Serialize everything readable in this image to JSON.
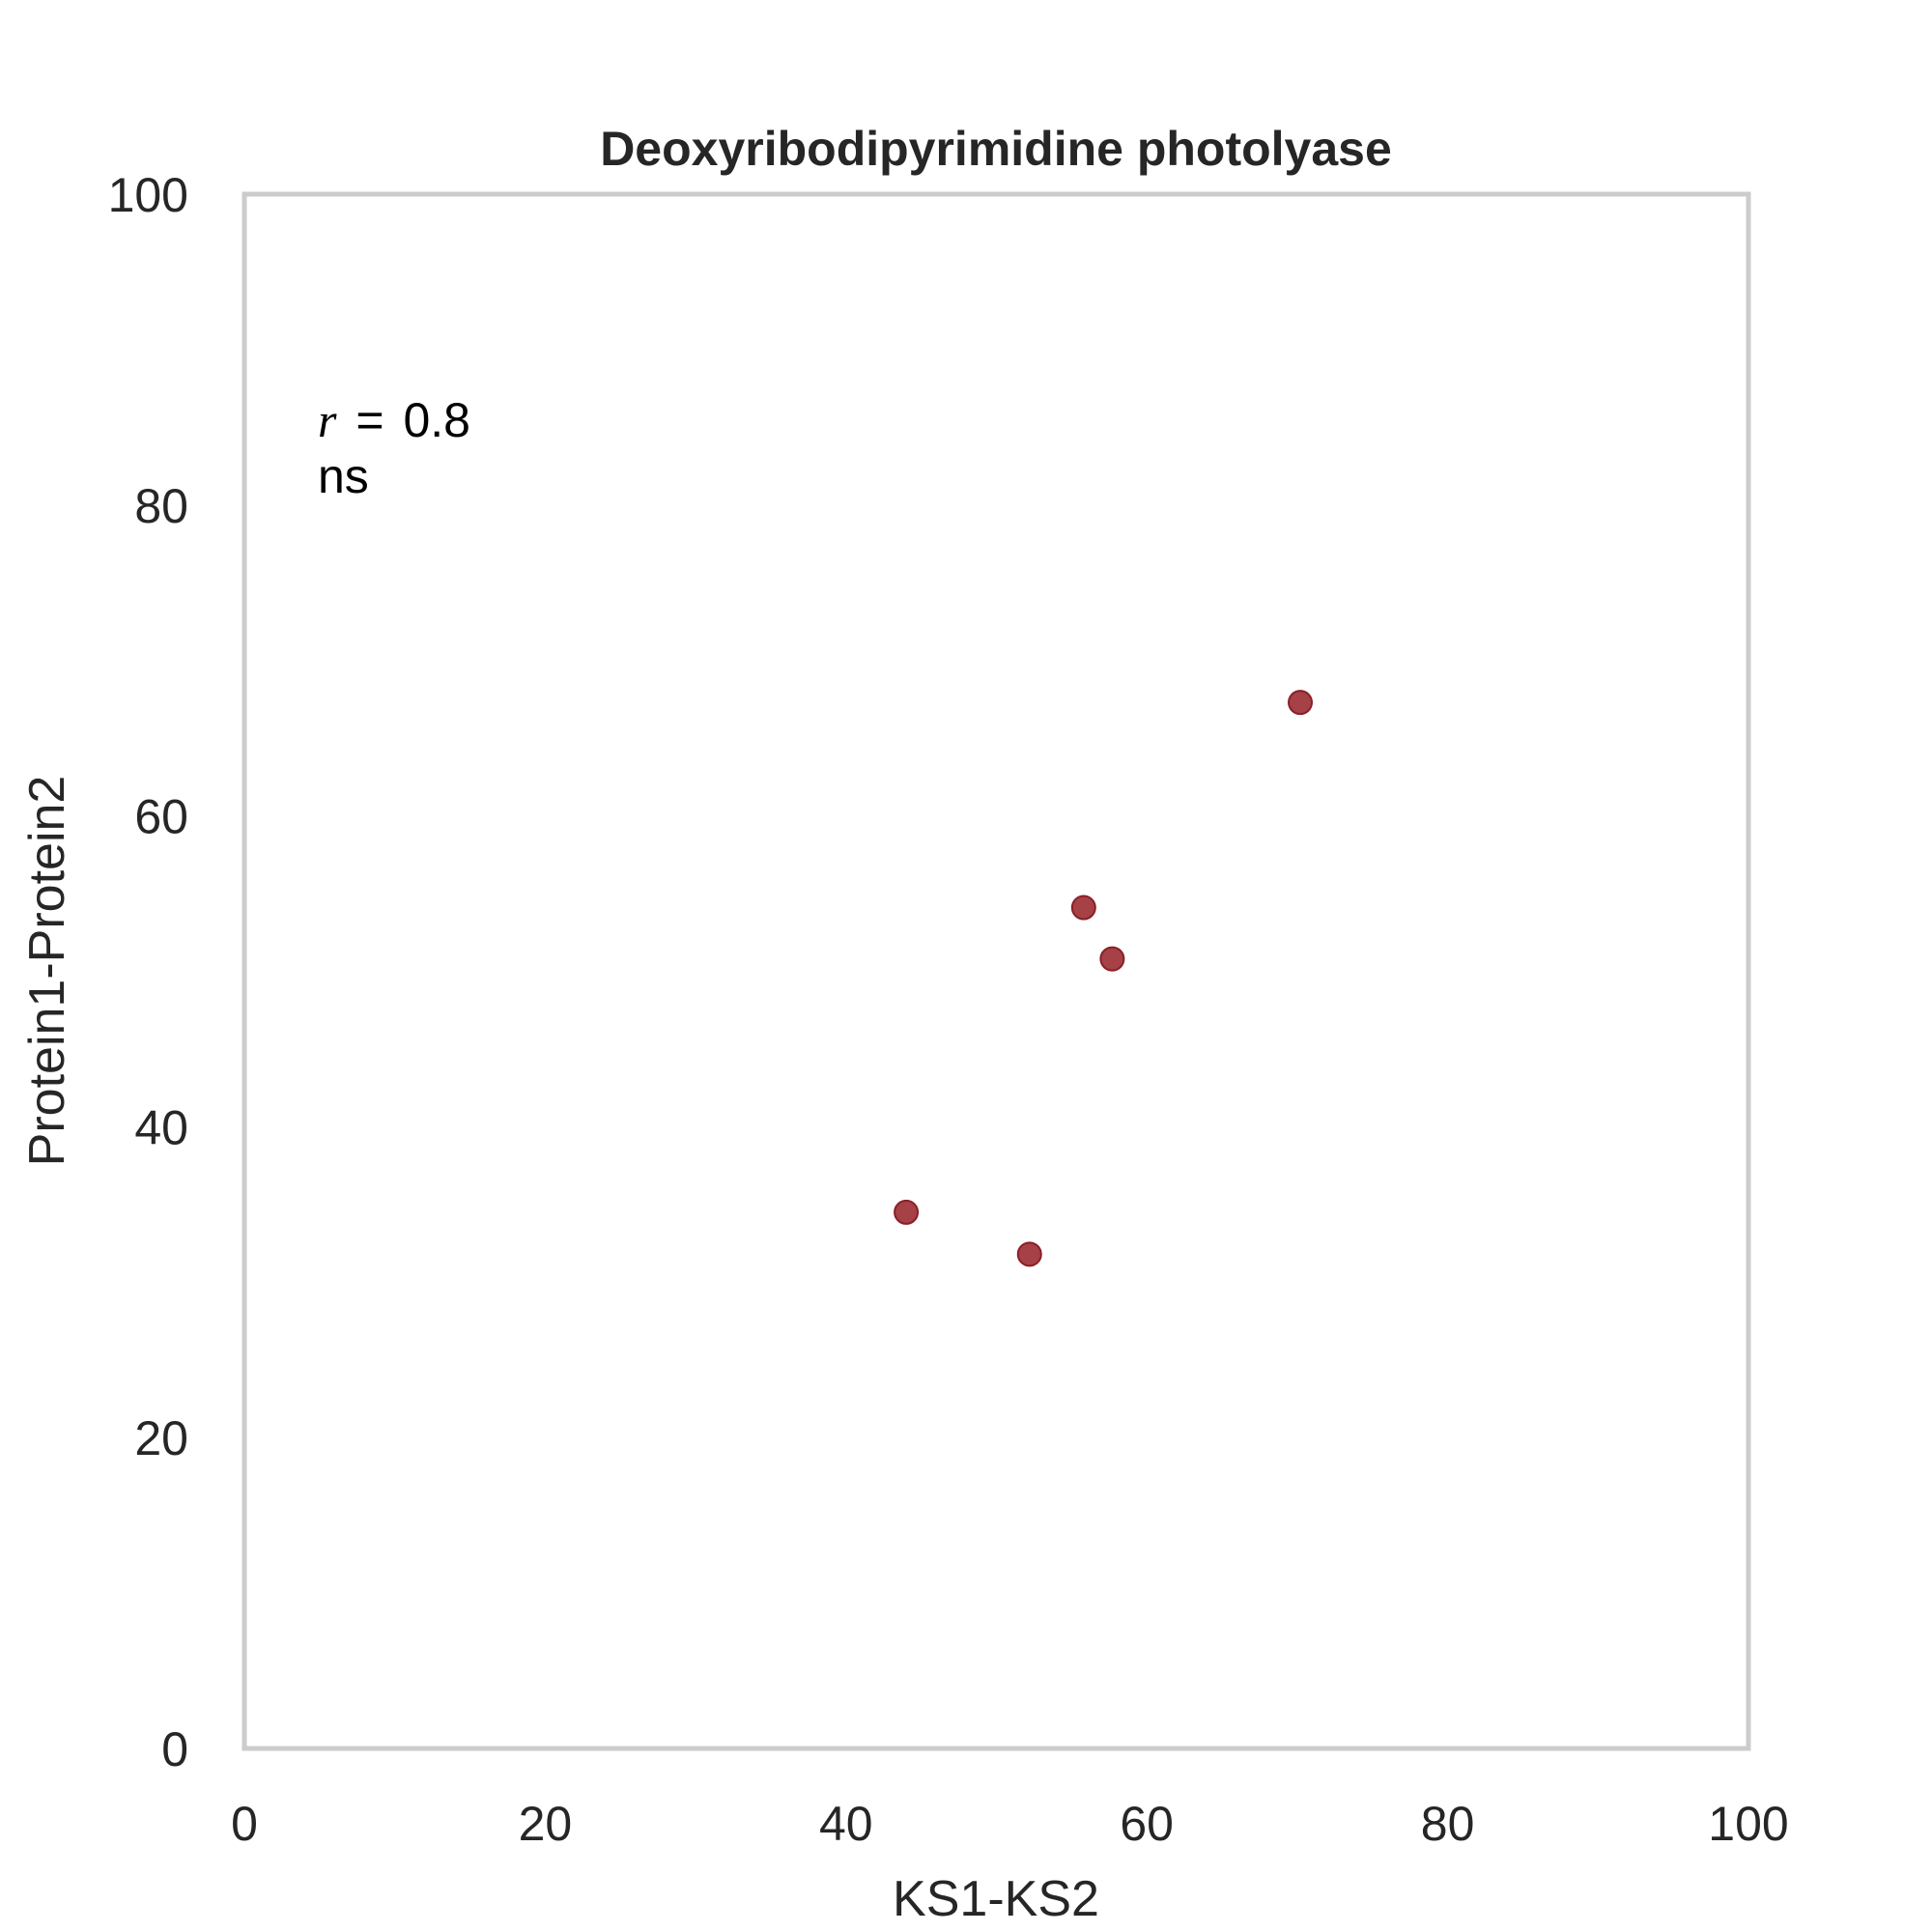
{
  "chart_data": {
    "type": "scatter",
    "title": "Deoxyribodipyrimidine photolyase",
    "xlabel": "KS1-KS2",
    "ylabel": "Protein1-Protein2",
    "xlim": [
      0,
      100
    ],
    "ylim": [
      0,
      100
    ],
    "xticks": [
      "0",
      "20",
      "40",
      "60",
      "80",
      "100"
    ],
    "yticks": [
      "0",
      "20",
      "40",
      "60",
      "80",
      "100"
    ],
    "grid": false,
    "series": [
      {
        "name": "points",
        "color": "#9b2c33",
        "points": [
          {
            "x": 44.0,
            "y": 34.5
          },
          {
            "x": 52.2,
            "y": 31.8
          },
          {
            "x": 55.8,
            "y": 54.1
          },
          {
            "x": 57.7,
            "y": 50.8
          },
          {
            "x": 70.2,
            "y": 67.3
          }
        ]
      }
    ],
    "annotation": {
      "stat_symbol": "r",
      "stat_equals": "=",
      "stat_value": "0.8",
      "significance": "ns"
    }
  },
  "colors": {
    "frame": "#cccccc",
    "marker": "#9b2c33",
    "text": "#262626"
  }
}
